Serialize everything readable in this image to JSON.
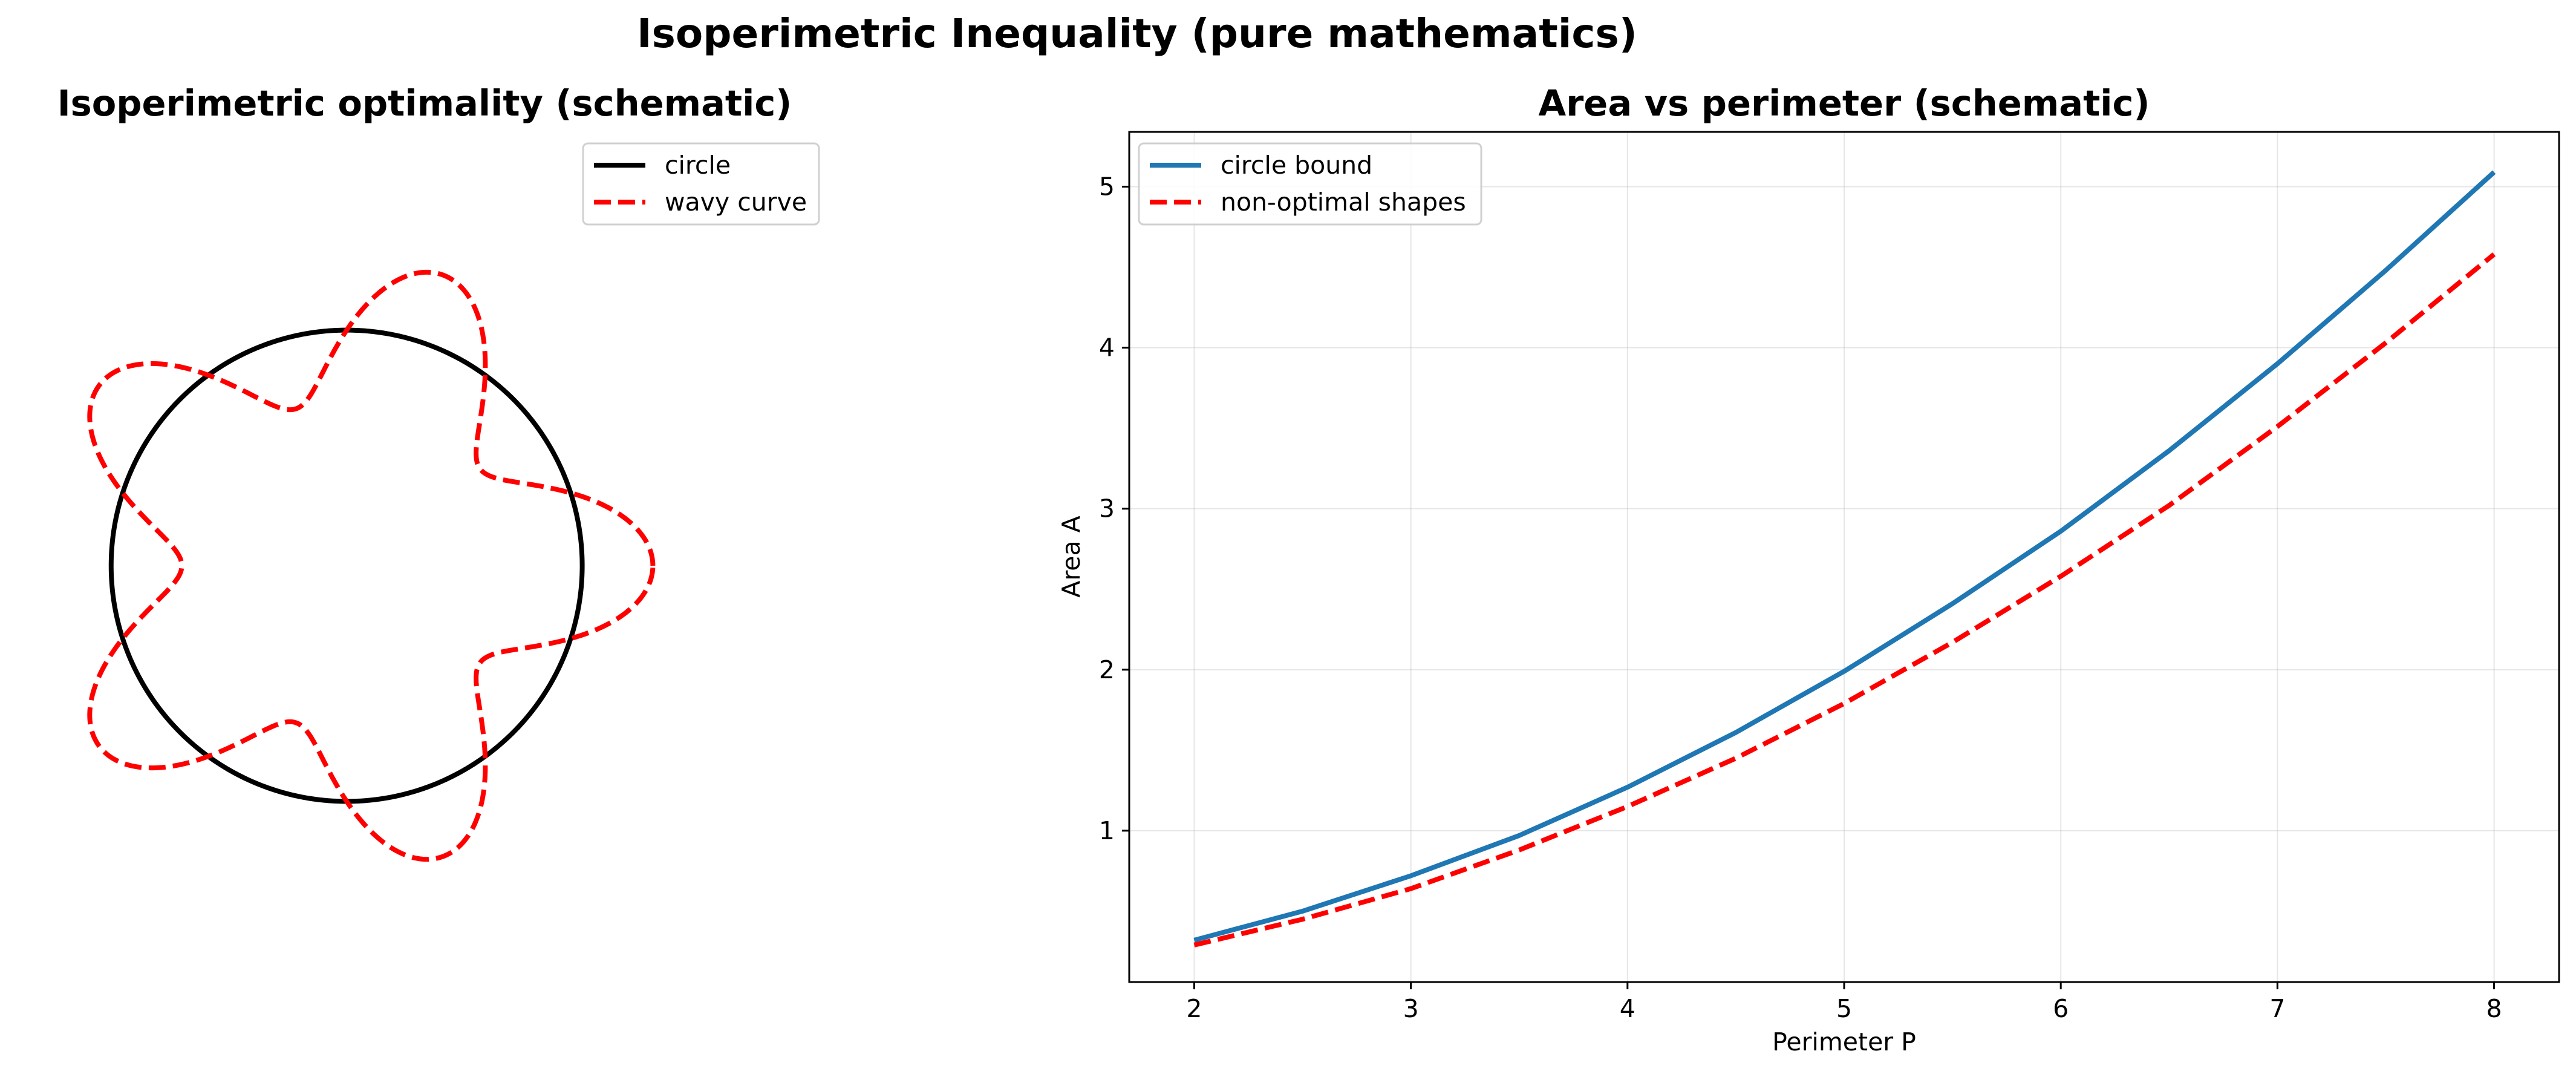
{
  "figure": {
    "title": "Isoperimetric Inequality (pure mathematics)"
  },
  "chart_data": [
    {
      "type": "line",
      "panel": "left",
      "title": "Isoperimetric optimality (schematic)",
      "xlabel": "",
      "ylabel": "",
      "axes_visible": false,
      "aspect": "equal",
      "xlim": [
        -1.4,
        2.0
      ],
      "ylim": [
        -1.35,
        1.35
      ],
      "legend": {
        "location": "upper right",
        "entries": [
          "circle",
          "wavy curve"
        ]
      },
      "series": [
        {
          "name": "circle",
          "color": "#000000",
          "linestyle": "solid",
          "equation": "r(t) = 1, t in [0, 2*pi]"
        },
        {
          "name": "wavy curve",
          "color": "#ff0000",
          "linestyle": "dashed",
          "equation": "r(t) = 1 + 0.3*cos(5t), t in [0, 2*pi]"
        }
      ]
    },
    {
      "type": "line",
      "panel": "right",
      "title": "Area vs perimeter (schematic)",
      "xlabel": "Perimeter P",
      "ylabel": "Area A",
      "xlim": [
        1.7,
        8.3
      ],
      "ylim": [
        0.06,
        5.34
      ],
      "xticks": [
        2,
        3,
        4,
        5,
        6,
        7,
        8
      ],
      "yticks": [
        1,
        2,
        3,
        4,
        5
      ],
      "grid": true,
      "legend": {
        "location": "upper left",
        "entries": [
          "circle bound",
          "non-optimal shapes"
        ]
      },
      "series": [
        {
          "name": "circle bound",
          "color": "#1f77b4",
          "linestyle": "solid",
          "x": [
            2,
            2.5,
            3,
            3.5,
            4,
            4.5,
            5,
            5.5,
            6,
            6.5,
            7,
            7.5,
            8
          ],
          "y": [
            0.32,
            0.5,
            0.72,
            0.97,
            1.27,
            1.61,
            1.99,
            2.41,
            2.86,
            3.36,
            3.9,
            4.48,
            5.09
          ]
        },
        {
          "name": "non-optimal shapes",
          "color": "#ff0000",
          "linestyle": "dashed",
          "x": [
            2,
            2.5,
            3,
            3.5,
            4,
            4.5,
            5,
            5.5,
            6,
            6.5,
            7,
            7.5,
            8
          ],
          "y": [
            0.29,
            0.45,
            0.64,
            0.88,
            1.15,
            1.45,
            1.79,
            2.17,
            2.58,
            3.02,
            3.51,
            4.03,
            4.58
          ]
        }
      ]
    }
  ]
}
